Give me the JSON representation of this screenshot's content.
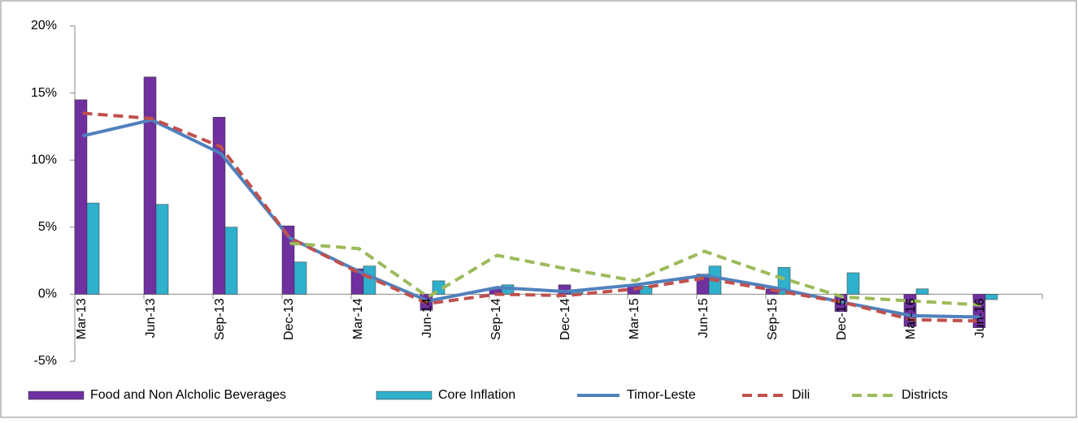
{
  "chart_data": {
    "type": "bar_line",
    "categories": [
      "Mar-13",
      "Jun-13",
      "Sep-13",
      "Dec-13",
      "Mar-14",
      "Jun-14",
      "Sep-14",
      "Dec-14",
      "Mar-15",
      "Jun-15",
      "Sep-15",
      "Dec-15",
      "Mar-16",
      "Jun-16"
    ],
    "series": [
      {
        "name": "Food and Non Alcholic Beverages",
        "kind": "bar",
        "color": "#7030a0",
        "values": [
          14.5,
          16.2,
          13.2,
          5.1,
          1.9,
          -1.2,
          0.5,
          0.7,
          0.6,
          1.5,
          0.4,
          -1.3,
          -2.4,
          -2.5
        ]
      },
      {
        "name": "Core Inflation",
        "kind": "bar",
        "color": "#2fb0cc",
        "values": [
          6.8,
          6.7,
          5.0,
          2.4,
          2.1,
          1.0,
          0.7,
          0.3,
          0.6,
          2.1,
          2.0,
          1.6,
          0.4,
          -0.4
        ]
      },
      {
        "name": "Timor-Leste",
        "kind": "line",
        "color": "#4f81bd",
        "dash": false,
        "values": [
          11.8,
          13.0,
          10.5,
          4.2,
          1.7,
          -0.5,
          0.5,
          0.2,
          0.7,
          1.4,
          0.5,
          -0.6,
          -1.6,
          -1.7
        ]
      },
      {
        "name": "Dili",
        "kind": "line",
        "color": "#c0504d",
        "dash": true,
        "values": [
          13.5,
          13.1,
          11.0,
          4.2,
          1.6,
          -0.7,
          0.0,
          -0.1,
          0.4,
          1.2,
          0.3,
          -0.6,
          -1.9,
          -2.0
        ]
      },
      {
        "name": "Districts",
        "kind": "line",
        "color": "#9bbb59",
        "dash": true,
        "values": [
          null,
          null,
          null,
          3.8,
          3.4,
          -0.2,
          2.9,
          1.9,
          1.0,
          3.2,
          1.4,
          -0.2,
          -0.5,
          -0.8
        ]
      }
    ],
    "ylim": [
      -5,
      20
    ],
    "yticks": [
      {
        "value": -5,
        "label": "-5%"
      },
      {
        "value": 0,
        "label": "0%"
      },
      {
        "value": 5,
        "label": "5%"
      },
      {
        "value": 10,
        "label": "10%"
      },
      {
        "value": 15,
        "label": "15%"
      },
      {
        "value": 20,
        "label": "20%"
      }
    ],
    "legend": "bottom"
  }
}
